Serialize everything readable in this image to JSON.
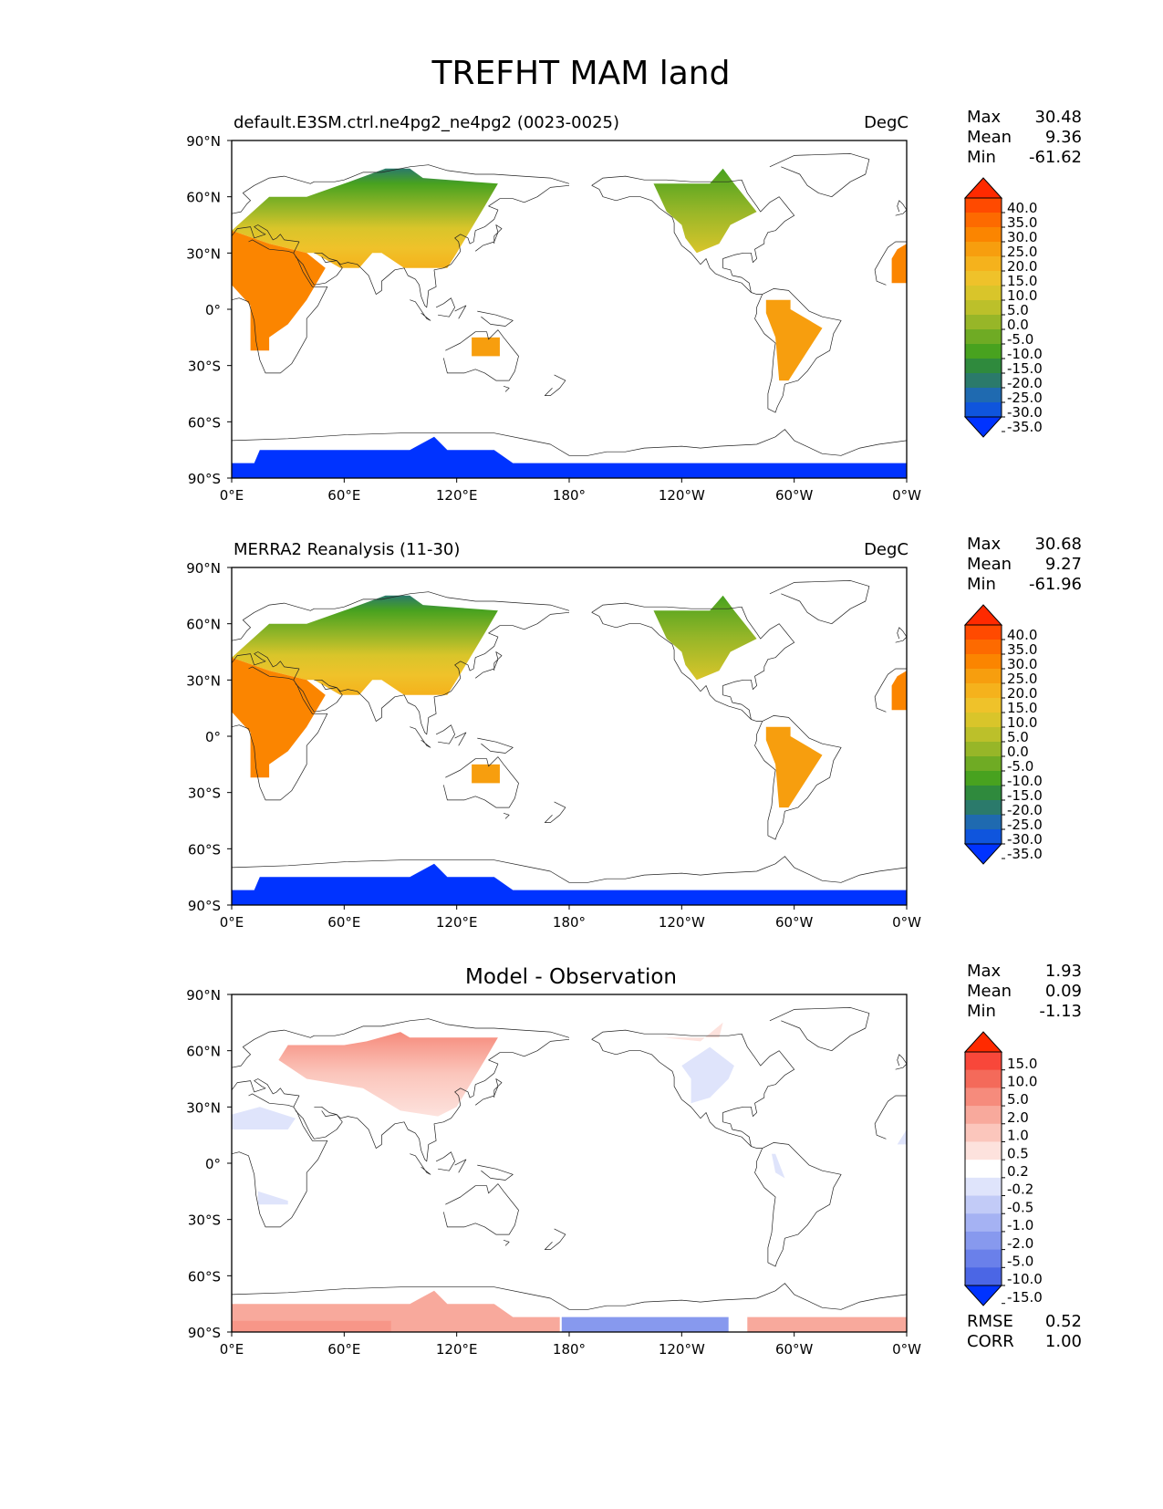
{
  "figure": {
    "title": "TREFHT MAM land"
  },
  "panels": [
    {
      "title_left": "default.E3SM.ctrl.ne4pg2_ne4pg2 (0023-0025)",
      "title_center": "",
      "title_right": "DegC",
      "stats": {
        "labels": [
          "Max",
          "Mean",
          "Min"
        ],
        "values": [
          "30.48",
          "9.36",
          "-61.62"
        ]
      },
      "colorbar": {
        "ticks": [
          "40.0",
          "35.0",
          "30.0",
          "25.0",
          "20.0",
          "15.0",
          "10.0",
          "5.0",
          "0.0",
          "-5.0",
          "-10.0",
          "-15.0",
          "-20.0",
          "-25.0",
          "-30.0",
          "-35.0"
        ],
        "colors": [
          "#ff2a00",
          "#ff4a00",
          "#fd6a00",
          "#fb8500",
          "#f79e0e",
          "#f5b21c",
          "#efc22a",
          "#d9c52a",
          "#bcc02a",
          "#97b628",
          "#6fab24",
          "#48a21f",
          "#2f8a3d",
          "#2b7a6b",
          "#1f6ab0",
          "#0f55dd",
          "#0033ff"
        ]
      }
    },
    {
      "title_left": "MERRA2 Reanalysis (11-30)",
      "title_center": "",
      "title_right": "DegC",
      "stats": {
        "labels": [
          "Max",
          "Mean",
          "Min"
        ],
        "values": [
          "30.68",
          "9.27",
          "-61.96"
        ]
      },
      "colorbar": {
        "ticks": [
          "40.0",
          "35.0",
          "30.0",
          "25.0",
          "20.0",
          "15.0",
          "10.0",
          "5.0",
          "0.0",
          "-5.0",
          "-10.0",
          "-15.0",
          "-20.0",
          "-25.0",
          "-30.0",
          "-35.0"
        ],
        "colors": [
          "#ff2a00",
          "#ff4a00",
          "#fd6a00",
          "#fb8500",
          "#f79e0e",
          "#f5b21c",
          "#efc22a",
          "#d9c52a",
          "#bcc02a",
          "#97b628",
          "#6fab24",
          "#48a21f",
          "#2f8a3d",
          "#2b7a6b",
          "#1f6ab0",
          "#0f55dd",
          "#0033ff"
        ]
      }
    },
    {
      "title_left": "",
      "title_center": "Model - Observation",
      "title_right": "",
      "stats": {
        "labels": [
          "Max",
          "Mean",
          "Min"
        ],
        "values": [
          "1.93",
          "0.09",
          "-1.13"
        ]
      },
      "metrics": {
        "labels": [
          "RMSE",
          "CORR"
        ],
        "values": [
          "0.52",
          "1.00"
        ]
      },
      "colorbar": {
        "ticks": [
          "15.0",
          "10.0",
          "5.0",
          "2.0",
          "1.0",
          "0.5",
          "0.2",
          "-0.2",
          "-0.5",
          "-1.0",
          "-2.0",
          "-5.0",
          "-10.0",
          "-15.0"
        ],
        "colors": [
          "#ff2a00",
          "#f8473a",
          "#f46a5a",
          "#f68b7c",
          "#f8a99c",
          "#fbc6bc",
          "#fde2dd",
          "#ffffff",
          "#dfe4fb",
          "#c2cbf7",
          "#a5b2f3",
          "#8799ee",
          "#6a80ea",
          "#4b66e5",
          "#0033ff"
        ]
      }
    }
  ],
  "map_axes": {
    "lat_labels": [
      "90°N",
      "60°N",
      "30°N",
      "0°",
      "30°S",
      "60°S",
      "90°S"
    ],
    "lon_labels": [
      "0°E",
      "60°E",
      "120°E",
      "180°",
      "120°W",
      "60°W",
      "0°W"
    ]
  },
  "map_fill_colors": {
    "antarctica": "#0033ff",
    "diff_warm": "#f8a99c",
    "diff_warm_strong": "#f68b7c",
    "diff_warm_light": "#fde2dd",
    "diff_cool": "#dfe4fb",
    "diff_cool_strong": "#8799ee"
  }
}
